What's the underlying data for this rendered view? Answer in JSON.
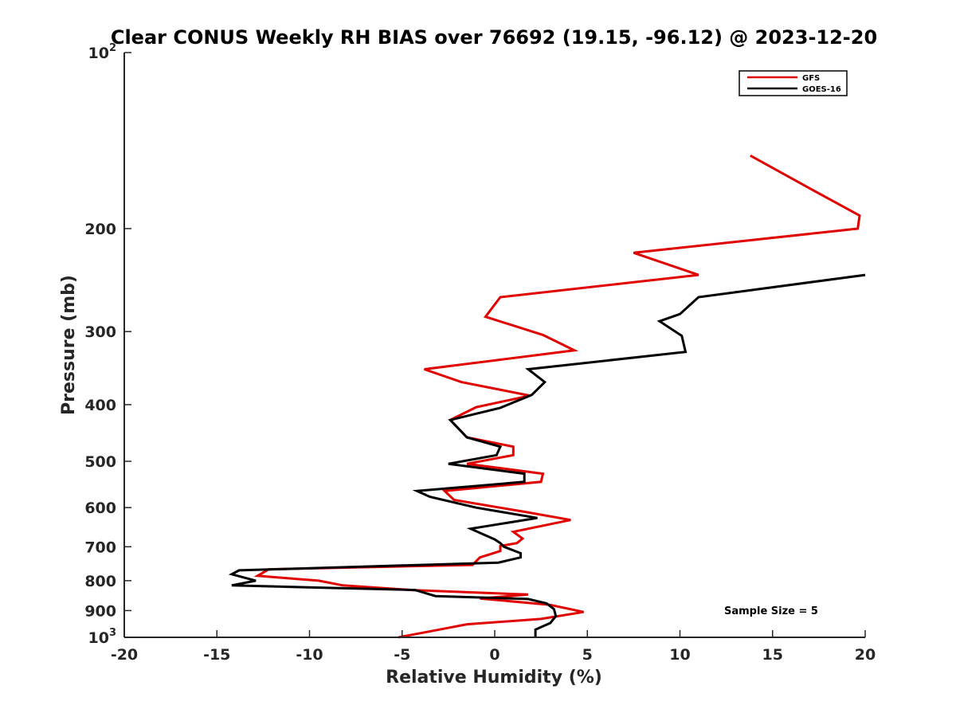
{
  "chart_data": {
    "type": "line",
    "title": "Clear CONUS Weekly RH BIAS over 76692 (19.15, -96.12) @ 2023-12-20",
    "xlabel": "Relative Humidity (%)",
    "ylabel": "Pressure (mb)",
    "xlim": [
      -20,
      20
    ],
    "ylim": [
      100,
      1000
    ],
    "yscale": "log",
    "yreversed": true,
    "x_ticks": [
      -20,
      -15,
      -10,
      -5,
      0,
      5,
      10,
      15,
      20
    ],
    "y_ticks": [
      {
        "value": 100,
        "base": "10",
        "exp": "2"
      },
      {
        "value": 200,
        "label": "200"
      },
      {
        "value": 300,
        "label": "300"
      },
      {
        "value": 400,
        "label": "400"
      },
      {
        "value": 500,
        "label": "500"
      },
      {
        "value": 600,
        "label": "600"
      },
      {
        "value": 700,
        "label": "700"
      },
      {
        "value": 800,
        "label": "800"
      },
      {
        "value": 900,
        "label": "900"
      },
      {
        "value": 1000,
        "base": "10",
        "exp": "3"
      }
    ],
    "legend_position": "top-right",
    "annotation": "Sample Size = 5",
    "series": [
      {
        "name": "GFS",
        "color": "#e00000",
        "points": [
          [
            13.8,
            150
          ],
          [
            16.9,
            170
          ],
          [
            19.7,
            190
          ],
          [
            19.6,
            200
          ],
          [
            7.5,
            220
          ],
          [
            11.0,
            240
          ],
          [
            0.3,
            262
          ],
          [
            -0.5,
            283
          ],
          [
            2.6,
            304
          ],
          [
            4.3,
            323
          ],
          [
            -3.8,
            348
          ],
          [
            -1.8,
            366
          ],
          [
            1.9,
            386
          ],
          [
            -1.0,
            404
          ],
          [
            -2.4,
            425
          ],
          [
            -1.5,
            455
          ],
          [
            1.0,
            472
          ],
          [
            1.0,
            488
          ],
          [
            -1.5,
            505
          ],
          [
            2.6,
            525
          ],
          [
            2.5,
            542
          ],
          [
            -2.7,
            562
          ],
          [
            -2.2,
            582
          ],
          [
            1.6,
            610
          ],
          [
            4.1,
            630
          ],
          [
            1.0,
            660
          ],
          [
            1.5,
            678
          ],
          [
            1.2,
            690
          ],
          [
            0.3,
            698
          ],
          [
            0.3,
            712
          ],
          [
            -0.8,
            730
          ],
          [
            -1.2,
            752
          ],
          [
            -12.2,
            765
          ],
          [
            -12.8,
            785
          ],
          [
            -9.5,
            800
          ],
          [
            -8.2,
            815
          ],
          [
            -4.5,
            830
          ],
          [
            1.8,
            845
          ],
          [
            -0.8,
            858
          ],
          [
            3.0,
            880
          ],
          [
            4.8,
            905
          ],
          [
            2.5,
            930
          ],
          [
            -1.5,
            950
          ],
          [
            -3.0,
            970
          ],
          [
            -5.2,
            1000
          ]
        ]
      },
      {
        "name": "GOES-16",
        "color": "#000000",
        "points": [
          [
            20.0,
            240
          ],
          [
            11.0,
            262
          ],
          [
            10.0,
            280
          ],
          [
            8.9,
            288
          ],
          [
            10.1,
            305
          ],
          [
            10.3,
            325
          ],
          [
            1.8,
            348
          ],
          [
            2.7,
            366
          ],
          [
            2.0,
            385
          ],
          [
            0.3,
            405
          ],
          [
            -2.4,
            425
          ],
          [
            -1.5,
            455
          ],
          [
            0.3,
            472
          ],
          [
            0.1,
            488
          ],
          [
            -2.5,
            505
          ],
          [
            1.6,
            525
          ],
          [
            1.6,
            542
          ],
          [
            -4.2,
            562
          ],
          [
            -3.5,
            575
          ],
          [
            -1.0,
            600
          ],
          [
            2.3,
            625
          ],
          [
            -1.3,
            652
          ],
          [
            0.0,
            680
          ],
          [
            0.3,
            690
          ],
          [
            0.5,
            700
          ],
          [
            1.4,
            718
          ],
          [
            1.4,
            730
          ],
          [
            0.2,
            745
          ],
          [
            -13.8,
            768
          ],
          [
            -14.2,
            780
          ],
          [
            -12.9,
            800
          ],
          [
            -14.2,
            815
          ],
          [
            -4.3,
            830
          ],
          [
            -3.2,
            850
          ],
          [
            1.8,
            860
          ],
          [
            2.8,
            875
          ],
          [
            3.2,
            895
          ],
          [
            3.3,
            920
          ],
          [
            3.0,
            945
          ],
          [
            2.2,
            970
          ],
          [
            2.2,
            1000
          ]
        ]
      }
    ]
  }
}
